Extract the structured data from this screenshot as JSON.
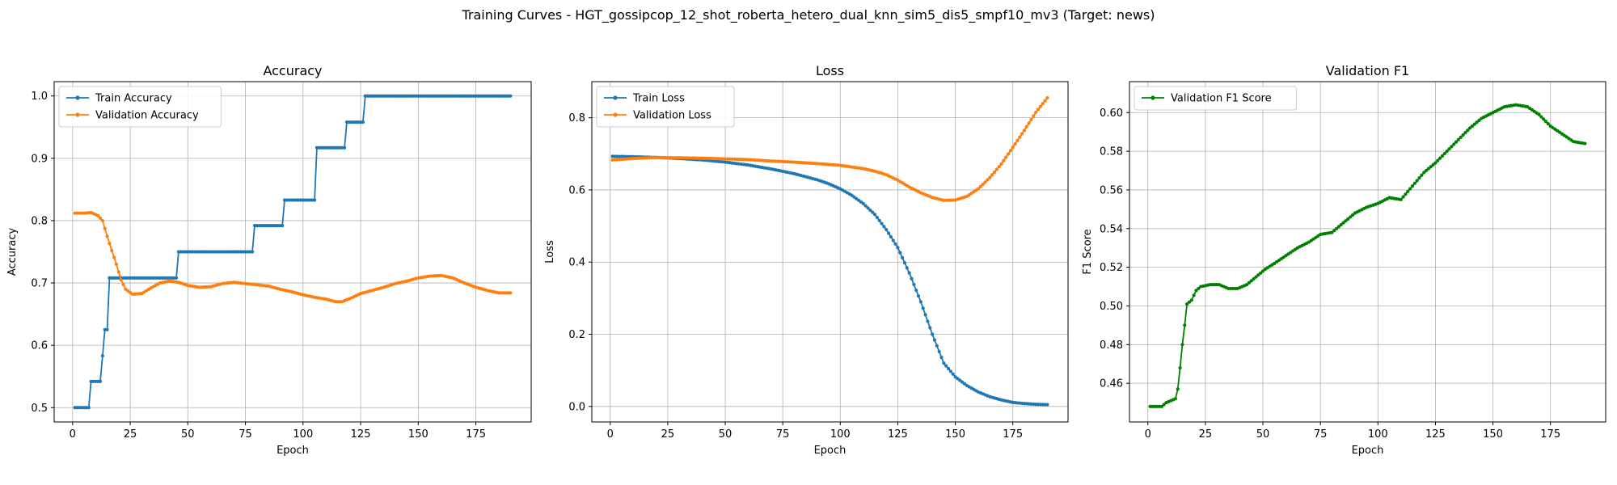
{
  "figure": {
    "title": "Training Curves - HGT_gossipcop_12_shot_roberta_hetero_dual_knn_sim5_dis5_smpf10_mv3 (Target: news)"
  },
  "colors": {
    "blue": "#1f77b4",
    "orange": "#ff7f0e",
    "green": "#008000",
    "grid": "#b0b0b0"
  },
  "chart_data": [
    {
      "type": "line",
      "title": "Accuracy",
      "xlabel": "Epoch",
      "ylabel": "Accuracy",
      "xlim": [
        -8,
        199
      ],
      "ylim": [
        0.477,
        1.023
      ],
      "xticks": [
        0,
        25,
        50,
        75,
        100,
        125,
        150,
        175
      ],
      "yticks": [
        0.5,
        0.6,
        0.7,
        0.8,
        0.9,
        1.0
      ],
      "yticks_labels": [
        "0.5",
        "0.6",
        "0.7",
        "0.8",
        "0.9",
        "1.0"
      ],
      "grid": true,
      "legend": "upper-left",
      "series": [
        {
          "name": "Train Accuracy",
          "color": "#1f77b4",
          "points": [
            [
              1,
              0.5
            ],
            [
              6,
              0.5
            ],
            [
              7,
              0.5
            ],
            [
              8,
              0.542
            ],
            [
              12,
              0.542
            ],
            [
              13,
              0.583
            ],
            [
              14,
              0.625
            ],
            [
              15,
              0.625
            ],
            [
              16,
              0.708
            ],
            [
              44,
              0.708
            ],
            [
              45,
              0.708
            ],
            [
              46,
              0.75
            ],
            [
              78,
              0.75
            ],
            [
              79,
              0.792
            ],
            [
              91,
              0.792
            ],
            [
              92,
              0.833
            ],
            [
              105,
              0.833
            ],
            [
              106,
              0.917
            ],
            [
              118,
              0.917
            ],
            [
              119,
              0.958
            ],
            [
              126,
              0.958
            ],
            [
              127,
              1.0
            ],
            [
              190,
              1.0
            ]
          ]
        },
        {
          "name": "Validation Accuracy",
          "color": "#ff7f0e",
          "points": [
            [
              1,
              0.812
            ],
            [
              5,
              0.812
            ],
            [
              8,
              0.813
            ],
            [
              11,
              0.808
            ],
            [
              13,
              0.8
            ],
            [
              15,
              0.775
            ],
            [
              17,
              0.752
            ],
            [
              19,
              0.73
            ],
            [
              21,
              0.705
            ],
            [
              23,
              0.69
            ],
            [
              26,
              0.682
            ],
            [
              30,
              0.683
            ],
            [
              34,
              0.692
            ],
            [
              38,
              0.7
            ],
            [
              42,
              0.703
            ],
            [
              46,
              0.701
            ],
            [
              50,
              0.696
            ],
            [
              55,
              0.693
            ],
            [
              60,
              0.694
            ],
            [
              65,
              0.699
            ],
            [
              70,
              0.701
            ],
            [
              75,
              0.699
            ],
            [
              80,
              0.697
            ],
            [
              85,
              0.695
            ],
            [
              90,
              0.69
            ],
            [
              95,
              0.686
            ],
            [
              100,
              0.681
            ],
            [
              105,
              0.677
            ],
            [
              110,
              0.674
            ],
            [
              114,
              0.67
            ],
            [
              117,
              0.67
            ],
            [
              121,
              0.676
            ],
            [
              125,
              0.683
            ],
            [
              130,
              0.688
            ],
            [
              135,
              0.693
            ],
            [
              140,
              0.699
            ],
            [
              145,
              0.703
            ],
            [
              150,
              0.708
            ],
            [
              155,
              0.711
            ],
            [
              160,
              0.712
            ],
            [
              165,
              0.708
            ],
            [
              170,
              0.7
            ],
            [
              175,
              0.693
            ],
            [
              180,
              0.688
            ],
            [
              185,
              0.684
            ],
            [
              190,
              0.684
            ]
          ]
        }
      ]
    },
    {
      "type": "line",
      "title": "Loss",
      "xlabel": "Epoch",
      "ylabel": "Loss",
      "xlim": [
        -8,
        199
      ],
      "ylim": [
        -0.043,
        0.9
      ],
      "xticks": [
        0,
        25,
        50,
        75,
        100,
        125,
        150,
        175
      ],
      "yticks": [
        0.0,
        0.2,
        0.4,
        0.6,
        0.8
      ],
      "yticks_labels": [
        "0.0",
        "0.2",
        "0.4",
        "0.6",
        "0.8"
      ],
      "grid": true,
      "legend": "upper-left",
      "series": [
        {
          "name": "Train Loss",
          "color": "#1f77b4",
          "points": [
            [
              1,
              0.693
            ],
            [
              10,
              0.692
            ],
            [
              20,
              0.69
            ],
            [
              30,
              0.687
            ],
            [
              40,
              0.683
            ],
            [
              50,
              0.677
            ],
            [
              60,
              0.669
            ],
            [
              70,
              0.658
            ],
            [
              80,
              0.645
            ],
            [
              90,
              0.628
            ],
            [
              95,
              0.617
            ],
            [
              100,
              0.603
            ],
            [
              105,
              0.585
            ],
            [
              110,
              0.562
            ],
            [
              115,
              0.532
            ],
            [
              120,
              0.49
            ],
            [
              125,
              0.44
            ],
            [
              130,
              0.37
            ],
            [
              135,
              0.29
            ],
            [
              140,
              0.2
            ],
            [
              145,
              0.12
            ],
            [
              150,
              0.082
            ],
            [
              155,
              0.058
            ],
            [
              160,
              0.04
            ],
            [
              165,
              0.027
            ],
            [
              170,
              0.018
            ],
            [
              175,
              0.011
            ],
            [
              180,
              0.008
            ],
            [
              185,
              0.006
            ],
            [
              190,
              0.005
            ]
          ]
        },
        {
          "name": "Validation Loss",
          "color": "#ff7f0e",
          "points": [
            [
              1,
              0.683
            ],
            [
              10,
              0.687
            ],
            [
              20,
              0.69
            ],
            [
              30,
              0.689
            ],
            [
              40,
              0.688
            ],
            [
              50,
              0.686
            ],
            [
              60,
              0.684
            ],
            [
              70,
              0.68
            ],
            [
              80,
              0.677
            ],
            [
              90,
              0.673
            ],
            [
              100,
              0.668
            ],
            [
              110,
              0.659
            ],
            [
              115,
              0.652
            ],
            [
              120,
              0.642
            ],
            [
              125,
              0.627
            ],
            [
              130,
              0.608
            ],
            [
              135,
              0.592
            ],
            [
              140,
              0.579
            ],
            [
              145,
              0.571
            ],
            [
              150,
              0.572
            ],
            [
              155,
              0.582
            ],
            [
              160,
              0.603
            ],
            [
              165,
              0.634
            ],
            [
              170,
              0.672
            ],
            [
              175,
              0.718
            ],
            [
              180,
              0.765
            ],
            [
              185,
              0.815
            ],
            [
              190,
              0.855
            ]
          ]
        }
      ]
    },
    {
      "type": "line",
      "title": "Validation F1",
      "xlabel": "Epoch",
      "ylabel": "F1 Score",
      "xlim": [
        -8,
        199
      ],
      "ylim": [
        0.44,
        0.616
      ],
      "xticks": [
        0,
        25,
        50,
        75,
        100,
        125,
        150,
        175
      ],
      "yticks": [
        0.46,
        0.48,
        0.5,
        0.52,
        0.54,
        0.56,
        0.58,
        0.6
      ],
      "yticks_labels": [
        "0.46",
        "0.48",
        "0.50",
        "0.52",
        "0.54",
        "0.56",
        "0.58",
        "0.60"
      ],
      "grid": true,
      "legend": "upper-left",
      "series": [
        {
          "name": "Validation F1 Score",
          "color": "#008000",
          "points": [
            [
              1,
              0.448
            ],
            [
              6,
              0.448
            ],
            [
              8,
              0.45
            ],
            [
              10,
              0.451
            ],
            [
              12,
              0.452
            ],
            [
              13,
              0.457
            ],
            [
              14,
              0.468
            ],
            [
              15,
              0.48
            ],
            [
              16,
              0.49
            ],
            [
              17,
              0.501
            ],
            [
              19,
              0.503
            ],
            [
              21,
              0.508
            ],
            [
              23,
              0.51
            ],
            [
              27,
              0.511
            ],
            [
              31,
              0.511
            ],
            [
              35,
              0.509
            ],
            [
              39,
              0.509
            ],
            [
              43,
              0.511
            ],
            [
              47,
              0.515
            ],
            [
              51,
              0.519
            ],
            [
              55,
              0.522
            ],
            [
              60,
              0.526
            ],
            [
              65,
              0.53
            ],
            [
              70,
              0.533
            ],
            [
              75,
              0.537
            ],
            [
              80,
              0.538
            ],
            [
              85,
              0.543
            ],
            [
              90,
              0.548
            ],
            [
              95,
              0.551
            ],
            [
              100,
              0.553
            ],
            [
              105,
              0.556
            ],
            [
              110,
              0.555
            ],
            [
              115,
              0.562
            ],
            [
              120,
              0.569
            ],
            [
              125,
              0.574
            ],
            [
              130,
              0.58
            ],
            [
              135,
              0.586
            ],
            [
              140,
              0.592
            ],
            [
              145,
              0.597
            ],
            [
              150,
              0.6
            ],
            [
              155,
              0.603
            ],
            [
              160,
              0.604
            ],
            [
              165,
              0.603
            ],
            [
              170,
              0.599
            ],
            [
              175,
              0.593
            ],
            [
              180,
              0.589
            ],
            [
              185,
              0.585
            ],
            [
              190,
              0.584
            ]
          ]
        }
      ]
    }
  ]
}
